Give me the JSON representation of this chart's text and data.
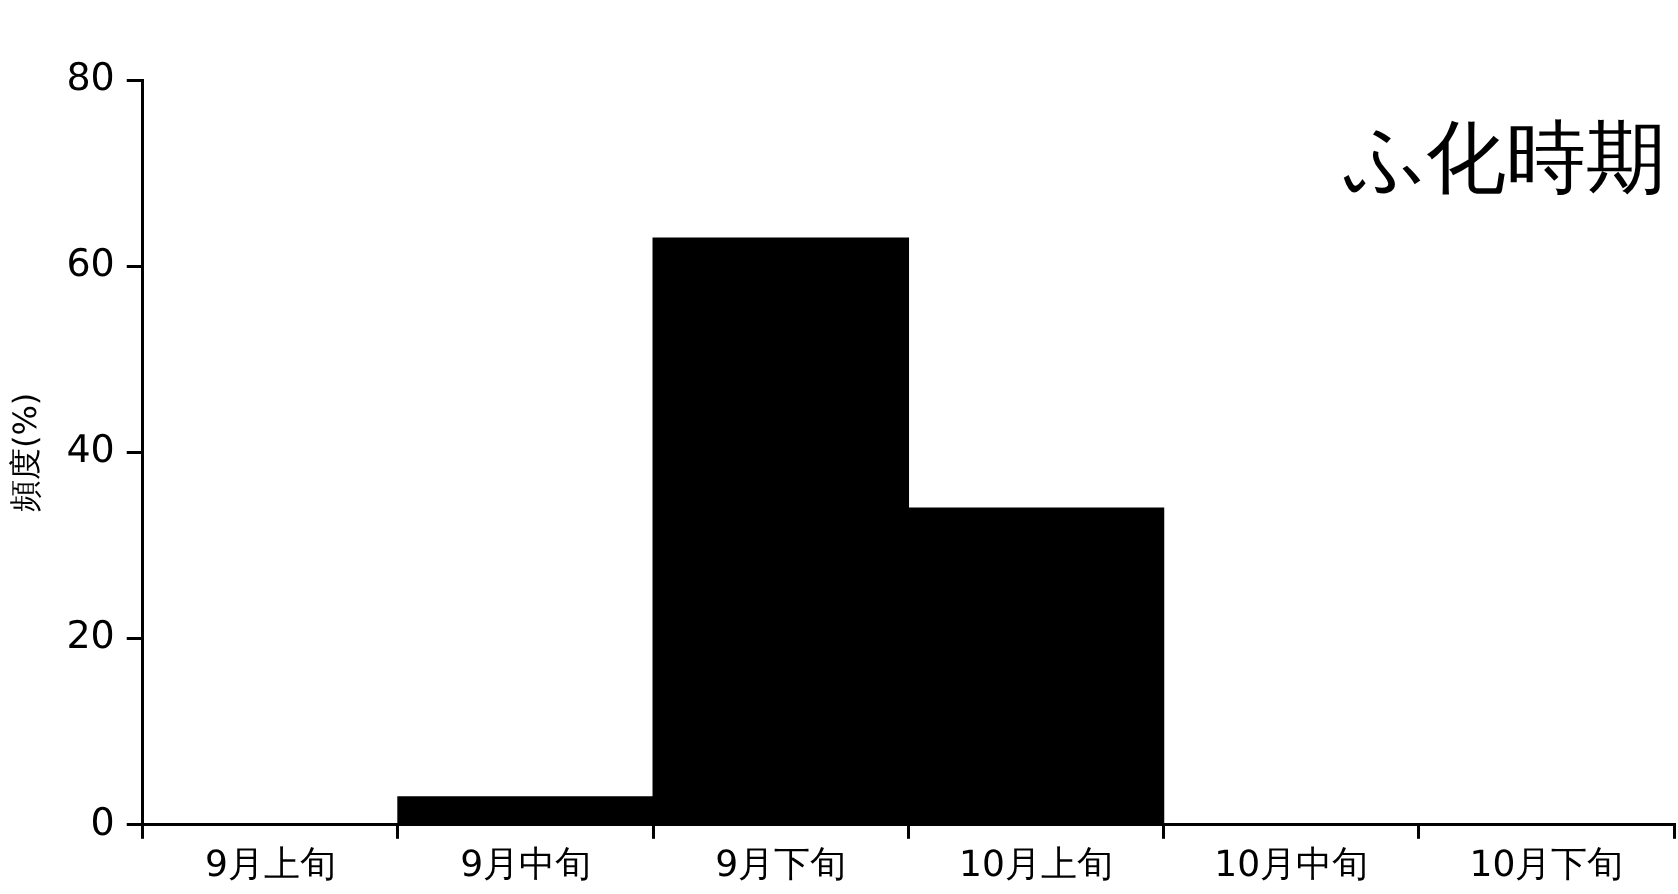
{
  "chart_data": {
    "type": "bar",
    "title": "ふ化時期",
    "ylabel": "頻度(%)",
    "categories": [
      "9月上旬",
      "9月中旬",
      "9月下旬",
      "10月上旬",
      "10月中旬",
      "10月下旬"
    ],
    "values": [
      0,
      3,
      63,
      34,
      0,
      0
    ],
    "color": "#000000",
    "ylim": [
      0,
      80
    ],
    "yticks": [
      0,
      20,
      40,
      60,
      80
    ],
    "grid": false,
    "legend": false
  }
}
